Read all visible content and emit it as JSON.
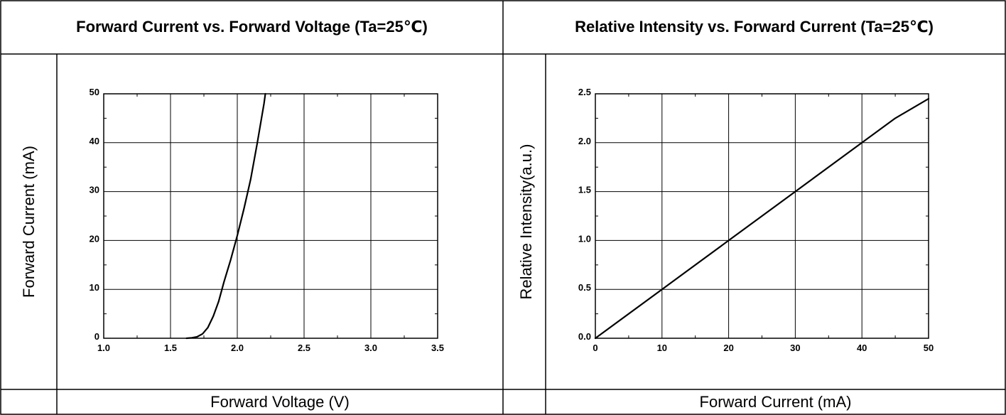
{
  "chart_data": [
    {
      "type": "line",
      "title": "Forward Current vs. Forward Voltage (Ta=25℃)",
      "xlabel": "Forward Voltage (V)",
      "ylabel": "Forward Current (mA)",
      "xlim": [
        1.0,
        3.5
      ],
      "ylim": [
        0,
        50
      ],
      "xticks": [
        "1.0",
        "1.5",
        "2.0",
        "2.5",
        "3.0",
        "3.5"
      ],
      "yticks": [
        "0",
        "10",
        "20",
        "30",
        "40",
        "50"
      ],
      "grid": true,
      "series": [
        {
          "x": [
            1.62,
            1.66,
            1.7,
            1.74,
            1.78,
            1.82,
            1.86,
            1.9,
            1.95,
            2.0,
            2.05,
            2.1,
            2.15,
            2.2,
            2.21
          ],
          "y": [
            0,
            0.1,
            0.3,
            0.9,
            2.2,
            4.5,
            7.5,
            11.5,
            16.0,
            21.0,
            26.5,
            32.5,
            40.0,
            48.0,
            50.0
          ]
        }
      ]
    },
    {
      "type": "line",
      "title": "Relative Intensity vs. Forward Current (Ta=25℃)",
      "xlabel": "Forward Current (mA)",
      "ylabel": "Relative Intensity(a.u.)",
      "xlim": [
        0,
        50
      ],
      "ylim": [
        0.0,
        2.5
      ],
      "xticks": [
        "0",
        "10",
        "20",
        "30",
        "40",
        "50"
      ],
      "yticks": [
        "0.0",
        "0.5",
        "1.0",
        "1.5",
        "2.0",
        "2.5"
      ],
      "grid": true,
      "series": [
        {
          "x": [
            0,
            10,
            20,
            30,
            40,
            45,
            50
          ],
          "y": [
            0.0,
            0.5,
            1.0,
            1.5,
            2.0,
            2.25,
            2.45
          ]
        }
      ]
    }
  ]
}
